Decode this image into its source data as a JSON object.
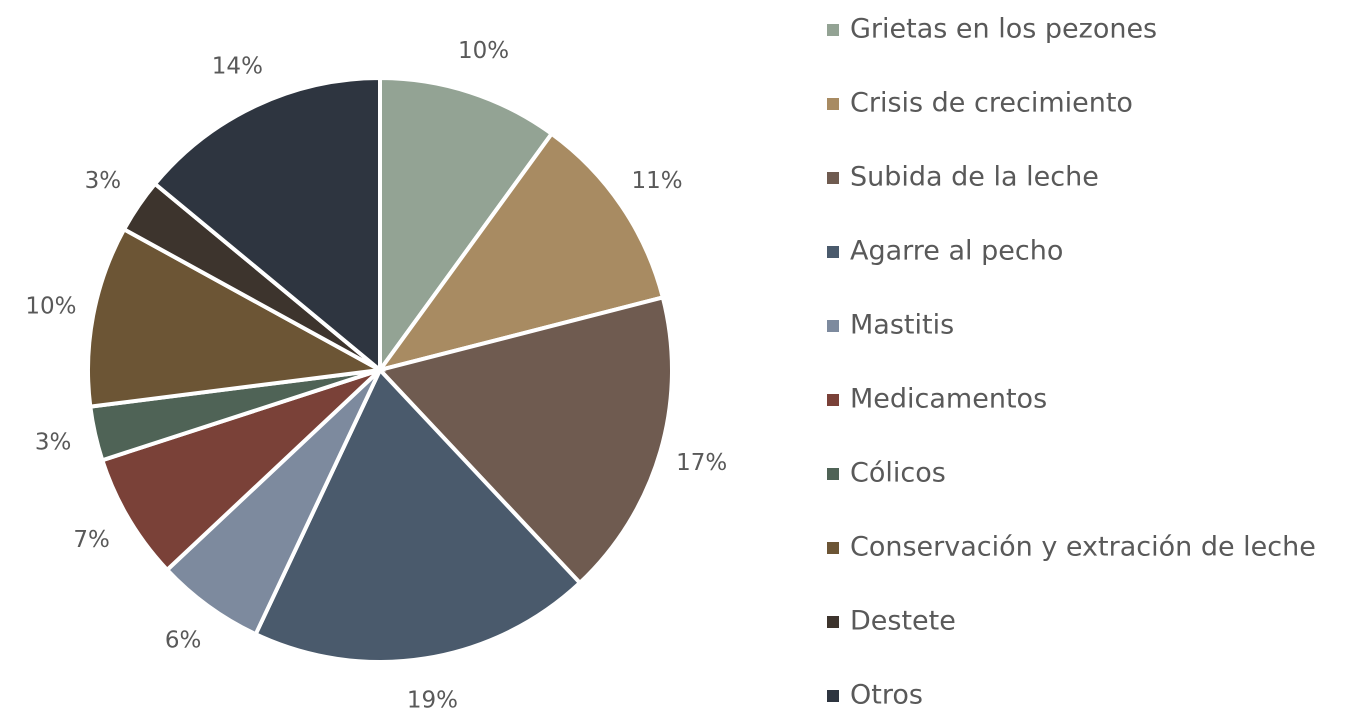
{
  "chart_data": {
    "type": "pie",
    "categories": [
      "Grietas en los pezones",
      "Crisis de crecimiento",
      "Subida de la leche",
      "Agarre al pecho",
      "Mastitis",
      "Medicamentos",
      "Cólicos",
      "Conservación y extración de leche",
      "Destete",
      "Otros"
    ],
    "values": [
      10,
      11,
      17,
      19,
      6,
      7,
      3,
      10,
      3,
      14
    ],
    "value_labels": [
      "10%",
      "11%",
      "17%",
      "19%",
      "6%",
      "7%",
      "3%",
      "10%",
      "3%",
      "14%"
    ],
    "colors": [
      "#93a394",
      "#a88b62",
      "#6f5b50",
      "#4a5a6c",
      "#7d8a9e",
      "#7a4138",
      "#4f6356",
      "#6c5535",
      "#3d342d",
      "#2e3540"
    ],
    "legend": "right"
  }
}
